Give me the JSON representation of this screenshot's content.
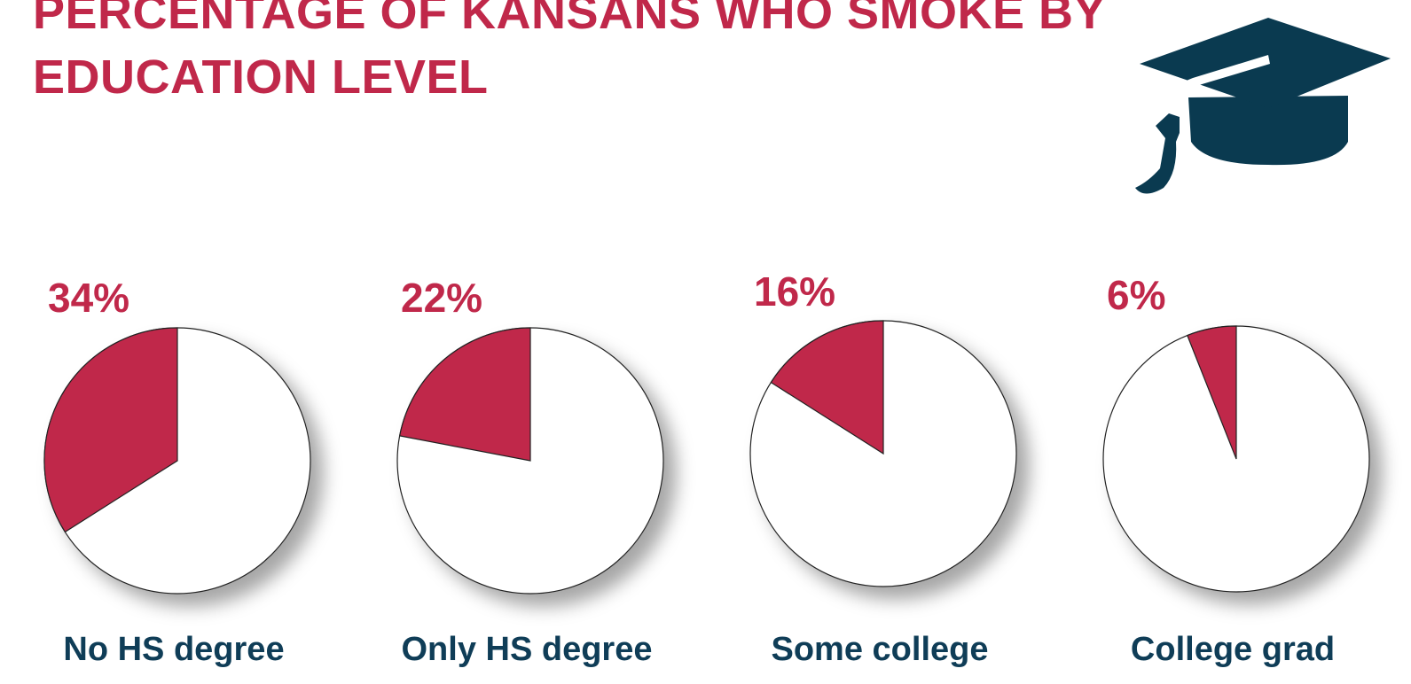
{
  "title": "PERCENTAGE OF KANSANS WHO SMOKE BY EDUCATION LEVEL",
  "chart_data": [
    {
      "type": "pie",
      "title": "No HS degree",
      "values": [
        34
      ],
      "value_labels": [
        "34%"
      ],
      "color": "#c0284a"
    },
    {
      "type": "pie",
      "title": "Only HS degree",
      "values": [
        22
      ],
      "value_labels": [
        "22%"
      ],
      "color": "#c0284a"
    },
    {
      "type": "pie",
      "title": "Some college",
      "values": [
        16
      ],
      "value_labels": [
        "16%"
      ],
      "color": "#c0284a"
    },
    {
      "type": "pie",
      "title": "College grad",
      "values": [
        6
      ],
      "value_labels": [
        "6%"
      ],
      "color": "#c0284a"
    }
  ]
}
